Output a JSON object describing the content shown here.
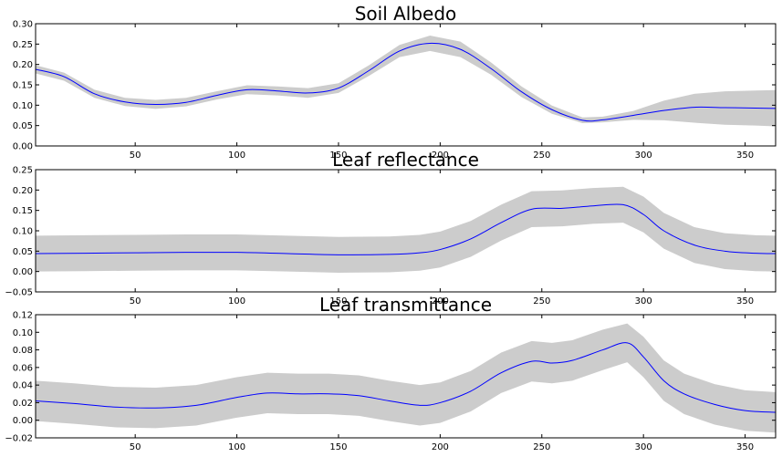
{
  "chart_data": [
    {
      "type": "line",
      "title": "Soil Albedo",
      "xlabel": "",
      "ylabel": "",
      "xlim": [
        1,
        365
      ],
      "ylim": [
        0.0,
        0.3
      ],
      "xticks": [
        50,
        100,
        150,
        200,
        250,
        300,
        350
      ],
      "xtick_labels": [
        "50",
        "100",
        "150",
        "200",
        "250",
        "300",
        "350"
      ],
      "yticks": [
        0.0,
        0.05,
        0.1,
        0.15,
        0.2,
        0.25,
        0.3
      ],
      "ytick_labels": [
        "0.00",
        "0.05",
        "0.10",
        "0.15",
        "0.20",
        "0.25",
        "0.30"
      ],
      "grid": false,
      "line_color": "#0000ff",
      "band_color": "#cccccc",
      "x": [
        1,
        15,
        30,
        45,
        60,
        75,
        90,
        105,
        120,
        135,
        150,
        165,
        180,
        195,
        210,
        225,
        240,
        255,
        270,
        280,
        295,
        310,
        325,
        340,
        355,
        365
      ],
      "mean": [
        0.188,
        0.17,
        0.128,
        0.108,
        0.102,
        0.107,
        0.124,
        0.138,
        0.135,
        0.13,
        0.142,
        0.185,
        0.233,
        0.252,
        0.237,
        0.19,
        0.133,
        0.089,
        0.063,
        0.064,
        0.075,
        0.087,
        0.095,
        0.094,
        0.093,
        0.092
      ],
      "lower": [
        0.178,
        0.16,
        0.118,
        0.098,
        0.091,
        0.097,
        0.114,
        0.127,
        0.124,
        0.118,
        0.13,
        0.172,
        0.218,
        0.233,
        0.218,
        0.175,
        0.12,
        0.079,
        0.056,
        0.058,
        0.064,
        0.063,
        0.057,
        0.052,
        0.05,
        0.048
      ],
      "upper": [
        0.198,
        0.18,
        0.138,
        0.118,
        0.113,
        0.118,
        0.134,
        0.149,
        0.146,
        0.142,
        0.154,
        0.198,
        0.248,
        0.271,
        0.256,
        0.205,
        0.146,
        0.099,
        0.07,
        0.072,
        0.086,
        0.111,
        0.128,
        0.134,
        0.136,
        0.137
      ]
    },
    {
      "type": "line",
      "title": "Leaf reflectance",
      "xlabel": "",
      "ylabel": "",
      "xlim": [
        1,
        365
      ],
      "ylim": [
        -0.05,
        0.25
      ],
      "xticks": [
        50,
        100,
        150,
        200,
        250,
        300,
        350
      ],
      "xtick_labels": [
        "50",
        "100",
        "150",
        "200",
        "250",
        "300",
        "350"
      ],
      "yticks": [
        -0.05,
        0.0,
        0.05,
        0.1,
        0.15,
        0.2,
        0.25
      ],
      "ytick_labels": [
        "−0.05",
        "0.00",
        "0.05",
        "0.10",
        "0.15",
        "0.20",
        "0.25"
      ],
      "grid": false,
      "line_color": "#0000ff",
      "band_color": "#cccccc",
      "x": [
        1,
        25,
        50,
        75,
        100,
        125,
        150,
        175,
        190,
        200,
        215,
        230,
        245,
        260,
        275,
        290,
        300,
        310,
        325,
        340,
        355,
        365
      ],
      "mean": [
        0.044,
        0.045,
        0.046,
        0.047,
        0.047,
        0.044,
        0.041,
        0.042,
        0.046,
        0.054,
        0.08,
        0.12,
        0.153,
        0.155,
        0.161,
        0.164,
        0.14,
        0.1,
        0.065,
        0.05,
        0.045,
        0.044
      ],
      "lower": [
        0.0,
        0.001,
        0.002,
        0.003,
        0.003,
        0.0,
        -0.003,
        -0.002,
        0.002,
        0.01,
        0.036,
        0.076,
        0.109,
        0.111,
        0.117,
        0.12,
        0.096,
        0.056,
        0.021,
        0.006,
        0.001,
        0.0
      ],
      "upper": [
        0.088,
        0.089,
        0.09,
        0.091,
        0.091,
        0.088,
        0.085,
        0.086,
        0.09,
        0.098,
        0.124,
        0.164,
        0.197,
        0.199,
        0.205,
        0.208,
        0.184,
        0.144,
        0.109,
        0.094,
        0.089,
        0.088
      ]
    },
    {
      "type": "line",
      "title": "Leaf transmittance",
      "xlabel": "",
      "ylabel": "",
      "xlim": [
        1,
        365
      ],
      "ylim": [
        -0.02,
        0.12
      ],
      "xticks": [
        50,
        100,
        150,
        200,
        250,
        300,
        350
      ],
      "xtick_labels": [
        "50",
        "100",
        "150",
        "200",
        "250",
        "300",
        "350"
      ],
      "yticks": [
        -0.02,
        0.0,
        0.02,
        0.04,
        0.06,
        0.08,
        0.1,
        0.12
      ],
      "ytick_labels": [
        "−0.02",
        "0.00",
        "0.02",
        "0.04",
        "0.06",
        "0.08",
        "0.10",
        "0.12"
      ],
      "grid": false,
      "line_color": "#0000ff",
      "band_color": "#cccccc",
      "x": [
        1,
        20,
        40,
        60,
        80,
        100,
        115,
        130,
        145,
        160,
        175,
        190,
        200,
        215,
        230,
        245,
        255,
        265,
        280,
        292,
        300,
        310,
        320,
        335,
        350,
        365
      ],
      "mean": [
        0.022,
        0.019,
        0.015,
        0.014,
        0.017,
        0.026,
        0.031,
        0.03,
        0.03,
        0.028,
        0.022,
        0.017,
        0.02,
        0.033,
        0.054,
        0.067,
        0.065,
        0.068,
        0.08,
        0.088,
        0.072,
        0.045,
        0.03,
        0.018,
        0.011,
        0.009
      ],
      "lower": [
        -0.001,
        -0.004,
        -0.008,
        -0.009,
        -0.006,
        0.003,
        0.008,
        0.007,
        0.007,
        0.005,
        -0.001,
        -0.006,
        -0.003,
        0.01,
        0.031,
        0.044,
        0.042,
        0.045,
        0.057,
        0.066,
        0.049,
        0.022,
        0.007,
        -0.005,
        -0.012,
        -0.014
      ],
      "upper": [
        0.045,
        0.042,
        0.038,
        0.037,
        0.04,
        0.049,
        0.054,
        0.053,
        0.053,
        0.051,
        0.045,
        0.04,
        0.043,
        0.056,
        0.077,
        0.09,
        0.088,
        0.091,
        0.103,
        0.11,
        0.095,
        0.068,
        0.053,
        0.041,
        0.034,
        0.032
      ]
    }
  ]
}
